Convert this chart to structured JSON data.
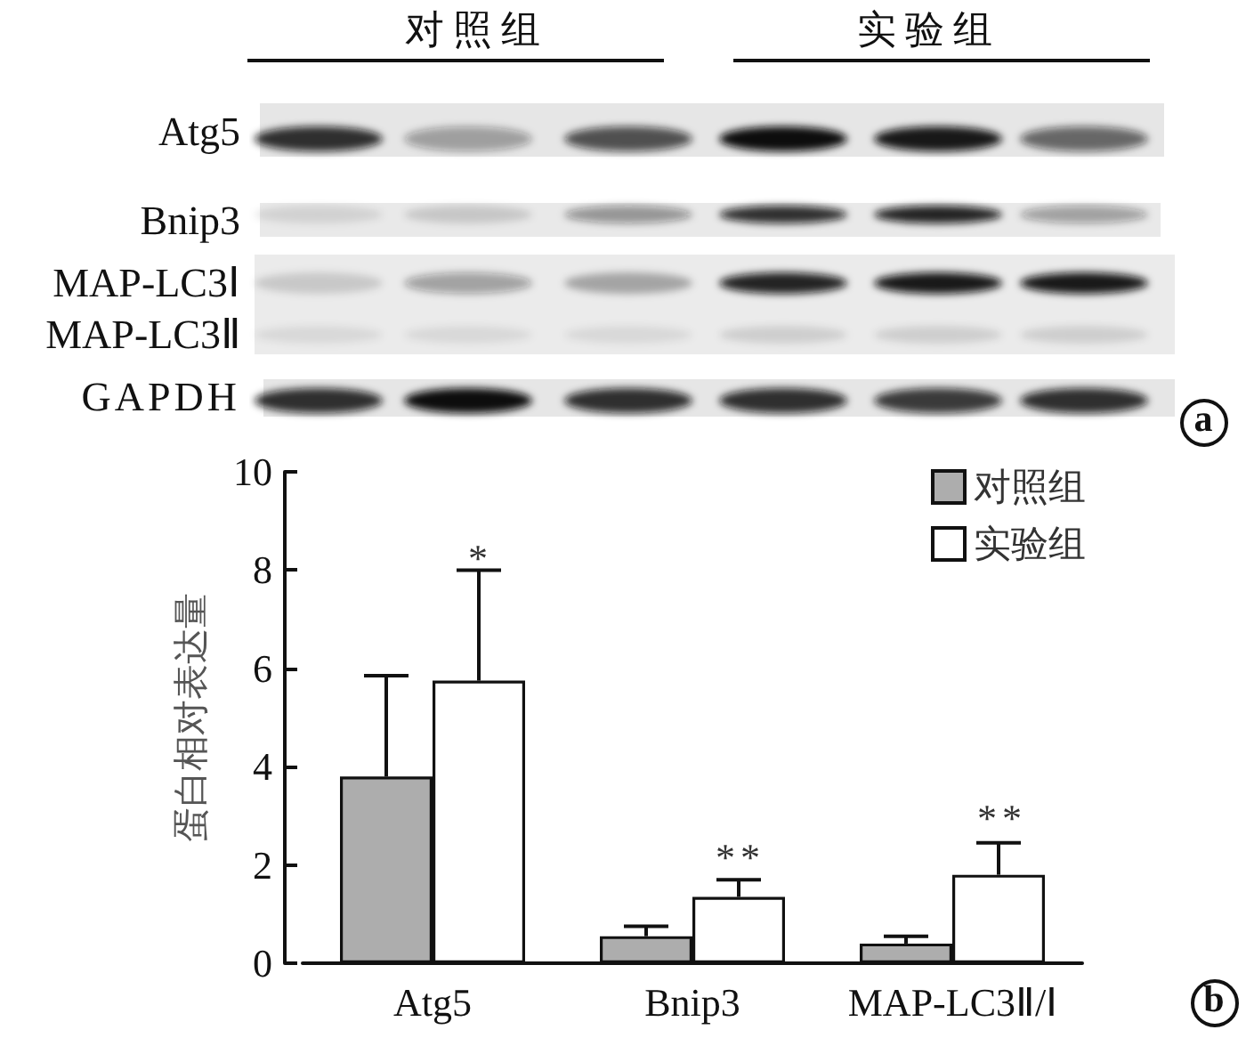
{
  "chart_data": {
    "type": "bar",
    "ylabel": "蛋白相对表达量",
    "categories": [
      "Atg5",
      "Bnip3",
      "MAP-LC3Ⅱ/Ⅰ"
    ],
    "series": [
      {
        "name": "对照组",
        "color": "#adadad",
        "values": [
          3.8,
          0.55,
          0.4
        ],
        "errors": [
          [
            3.8,
            5.85
          ],
          [
            0.55,
            0.75
          ],
          [
            0.4,
            0.55
          ]
        ]
      },
      {
        "name": "实验组",
        "color": "#ffffff",
        "values": [
          5.75,
          1.35,
          1.8
        ],
        "errors": [
          [
            5.75,
            8.0
          ],
          [
            1.35,
            1.7
          ],
          [
            1.8,
            2.45
          ]
        ]
      }
    ],
    "ylim": [
      0,
      10
    ],
    "yticks": [
      0,
      2,
      4,
      6,
      8,
      10
    ],
    "legend": "top right",
    "annotations": [
      "对照组",
      "实验组",
      "Atg5",
      "Bnip3",
      "MAP-LC3Ⅰ",
      "MAP-LC3Ⅱ",
      "GAPDH",
      "a",
      "b",
      "*",
      "**",
      "**"
    ]
  }
}
